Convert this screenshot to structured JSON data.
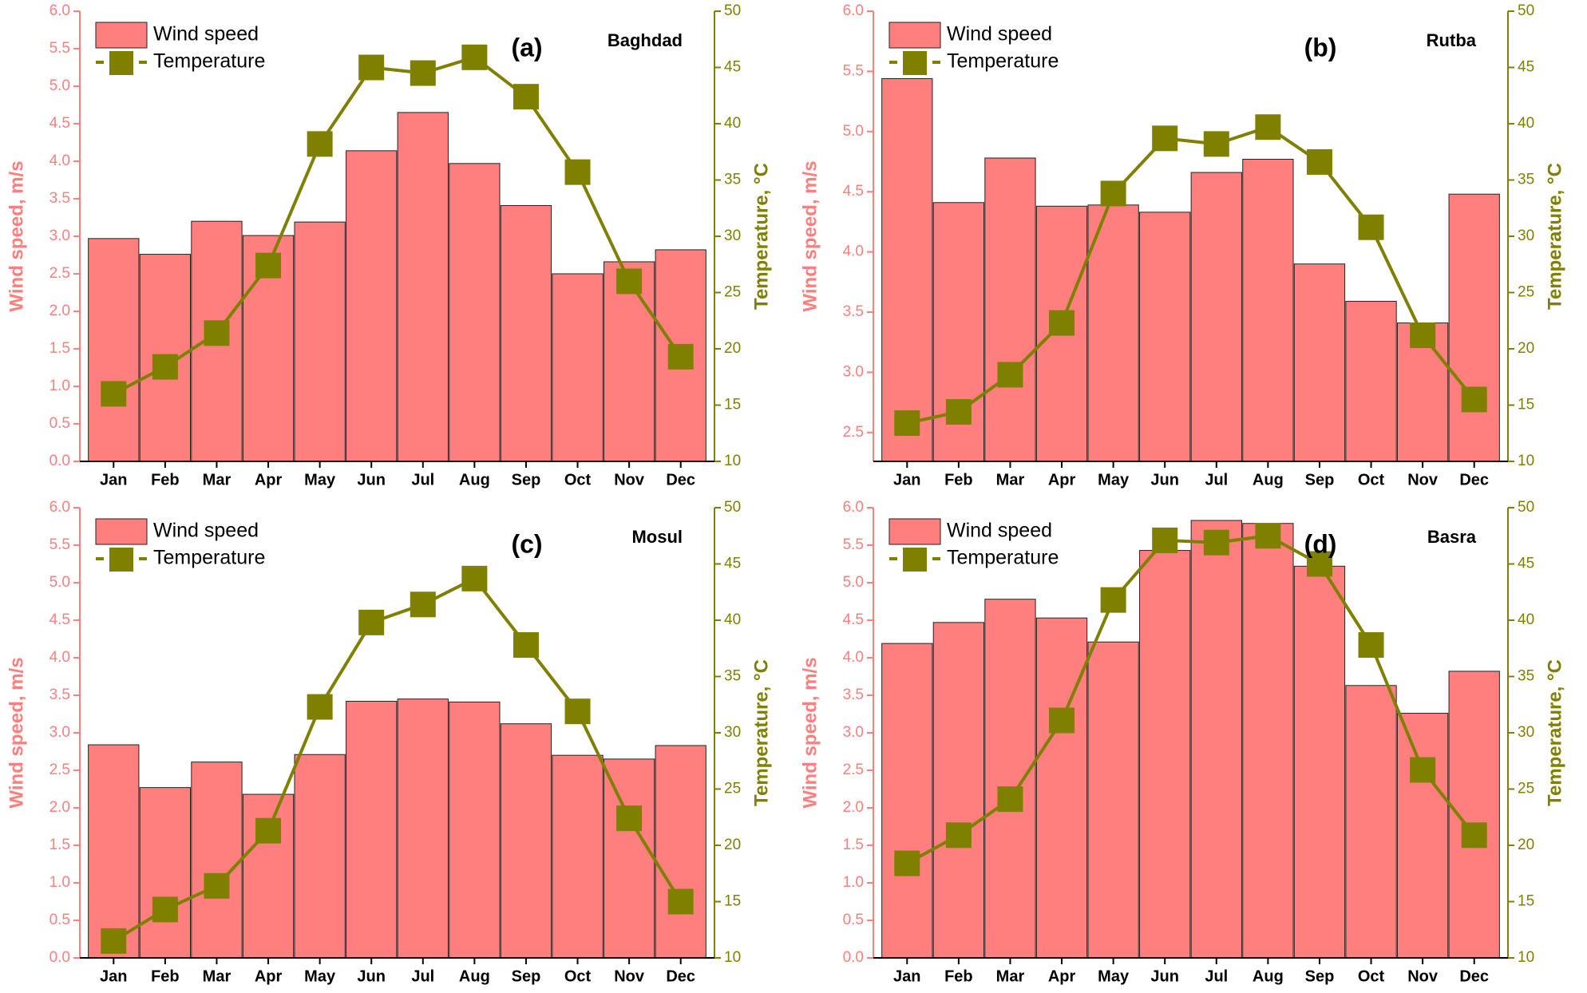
{
  "chart_data": [
    {
      "type": "bar",
      "panel": "(a)",
      "title": "Baghdad",
      "ylabel": "Wind speed, m/s",
      "y2label": "Temperature, °C",
      "legend": "upper left",
      "categories": [
        "Jan",
        "Feb",
        "Mar",
        "Apr",
        "May",
        "Jun",
        "Jul",
        "Aug",
        "Sep",
        "Oct",
        "Nov",
        "Dec"
      ],
      "series": [
        {
          "name": "Wind speed",
          "color": "#ff7f7f",
          "values": [
            2.97,
            2.76,
            3.2,
            3.01,
            3.19,
            4.14,
            4.65,
            3.97,
            3.41,
            2.5,
            2.66,
            2.82
          ]
        },
        {
          "name": "Temperature",
          "color": "#808000",
          "axis": "y2",
          "values": [
            16.0,
            18.4,
            21.4,
            27.4,
            38.2,
            45.0,
            44.5,
            45.9,
            42.4,
            35.7,
            26.0,
            19.3
          ]
        }
      ],
      "ylim": [
        0,
        6
      ],
      "yticks": [
        {
          "value": 0,
          "label": "0.0"
        },
        {
          "value": 0.5,
          "label": "0.5"
        },
        {
          "value": 1,
          "label": "1.0"
        },
        {
          "value": 1.5,
          "label": "1.5"
        },
        {
          "value": 2,
          "label": "2.0"
        },
        {
          "value": 2.5,
          "label": "2.5"
        },
        {
          "value": 3,
          "label": "3.0"
        },
        {
          "value": 3.5,
          "label": "3.5"
        },
        {
          "value": 4,
          "label": "4.0"
        },
        {
          "value": 4.5,
          "label": "4.5"
        },
        {
          "value": 5,
          "label": "5.0"
        },
        {
          "value": 5.5,
          "label": "5.5"
        },
        {
          "value": 6,
          "label": "6.0"
        }
      ],
      "y2lim": [
        10,
        50
      ],
      "y2ticks": [
        10,
        15,
        20,
        25,
        30,
        35,
        40,
        45,
        50
      ]
    },
    {
      "type": "bar",
      "panel": "(b)",
      "title": "Rutba",
      "ylabel": "Wind speed, m/s",
      "y2label": "Temperature, °C",
      "legend": "upper left",
      "categories": [
        "Jan",
        "Feb",
        "Mar",
        "Apr",
        "May",
        "Jun",
        "Jul",
        "Aug",
        "Sep",
        "Oct",
        "Nov",
        "Dec"
      ],
      "series": [
        {
          "name": "Wind speed",
          "color": "#ff7f7f",
          "values": [
            5.44,
            4.41,
            4.78,
            4.38,
            4.39,
            4.33,
            4.66,
            4.77,
            3.9,
            3.59,
            3.41,
            4.48
          ]
        },
        {
          "name": "Temperature",
          "color": "#808000",
          "axis": "y2",
          "values": [
            13.4,
            14.4,
            17.7,
            22.3,
            33.8,
            38.7,
            38.2,
            39.7,
            36.6,
            30.8,
            21.2,
            15.5
          ]
        }
      ],
      "ylim": [
        2.26,
        6
      ],
      "yticks": [
        {
          "value": 2.5,
          "label": "2.5"
        },
        {
          "value": 3,
          "label": "3.0"
        },
        {
          "value": 3.5,
          "label": "3.5"
        },
        {
          "value": 4,
          "label": "4.0"
        },
        {
          "value": 4.5,
          "label": "4.5"
        },
        {
          "value": 5,
          "label": "5.0"
        },
        {
          "value": 5.5,
          "label": "5.5"
        },
        {
          "value": 6,
          "label": "6.0"
        }
      ],
      "y2lim": [
        10,
        50
      ],
      "y2ticks": [
        10,
        15,
        20,
        25,
        30,
        35,
        40,
        45,
        50
      ]
    },
    {
      "type": "bar",
      "panel": "(c)",
      "title": "Mosul",
      "ylabel": "Wind speed, m/s",
      "y2label": "Temperature, °C",
      "legend": "upper left",
      "categories": [
        "Jan",
        "Feb",
        "Mar",
        "Apr",
        "May",
        "Jun",
        "Jul",
        "Aug",
        "Sep",
        "Oct",
        "Nov",
        "Dec"
      ],
      "series": [
        {
          "name": "Wind speed",
          "color": "#ff7f7f",
          "values": [
            2.84,
            2.27,
            2.61,
            2.18,
            2.71,
            3.42,
            3.45,
            3.41,
            3.12,
            2.7,
            2.65,
            2.83
          ]
        },
        {
          "name": "Temperature",
          "color": "#808000",
          "axis": "y2",
          "values": [
            11.5,
            14.3,
            16.4,
            21.3,
            32.3,
            39.8,
            41.4,
            43.7,
            37.8,
            31.9,
            22.4,
            15.0
          ]
        }
      ],
      "ylim": [
        0,
        6
      ],
      "yticks": [
        {
          "value": 0,
          "label": "0.0"
        },
        {
          "value": 0.5,
          "label": "0.5"
        },
        {
          "value": 1,
          "label": "1.0"
        },
        {
          "value": 1.5,
          "label": "1.5"
        },
        {
          "value": 2,
          "label": "2.0"
        },
        {
          "value": 2.5,
          "label": "2.5"
        },
        {
          "value": 3,
          "label": "3.0"
        },
        {
          "value": 3.5,
          "label": "3.5"
        },
        {
          "value": 4,
          "label": "4.0"
        },
        {
          "value": 4.5,
          "label": "4.5"
        },
        {
          "value": 5,
          "label": "5.0"
        },
        {
          "value": 5.5,
          "label": "5.5"
        },
        {
          "value": 6,
          "label": "6.0"
        }
      ],
      "y2lim": [
        10,
        50
      ],
      "y2ticks": [
        10,
        15,
        20,
        25,
        30,
        35,
        40,
        45,
        50
      ]
    },
    {
      "type": "bar",
      "panel": "(d)",
      "title": "Basra",
      "ylabel": "Wind speed, m/s",
      "y2label": "Temperature, °C",
      "legend": "upper left",
      "categories": [
        "Jan",
        "Feb",
        "Mar",
        "Apr",
        "May",
        "Jun",
        "Jul",
        "Aug",
        "Sep",
        "Oct",
        "Nov",
        "Dec"
      ],
      "series": [
        {
          "name": "Wind speed",
          "color": "#ff7f7f",
          "values": [
            4.19,
            4.47,
            4.78,
            4.53,
            4.21,
            5.43,
            5.83,
            5.79,
            5.22,
            3.63,
            3.26,
            3.82
          ]
        },
        {
          "name": "Temperature",
          "color": "#808000",
          "axis": "y2",
          "values": [
            18.4,
            20.9,
            24.1,
            31.1,
            41.8,
            47.1,
            46.9,
            47.5,
            45.0,
            37.8,
            26.7,
            20.9
          ]
        }
      ],
      "ylim": [
        0,
        6
      ],
      "yticks": [
        {
          "value": 0,
          "label": "0.0"
        },
        {
          "value": 0.5,
          "label": "0.5"
        },
        {
          "value": 1,
          "label": "1.0"
        },
        {
          "value": 1.5,
          "label": "1.5"
        },
        {
          "value": 2,
          "label": "2.0"
        },
        {
          "value": 2.5,
          "label": "2.5"
        },
        {
          "value": 3,
          "label": "3.0"
        },
        {
          "value": 3.5,
          "label": "3.5"
        },
        {
          "value": 4,
          "label": "4.0"
        },
        {
          "value": 4.5,
          "label": "4.5"
        },
        {
          "value": 5,
          "label": "5.0"
        },
        {
          "value": 5.5,
          "label": "5.5"
        },
        {
          "value": 6,
          "label": "6.0"
        }
      ],
      "y2lim": [
        10,
        50
      ],
      "y2ticks": [
        10,
        15,
        20,
        25,
        30,
        35,
        40,
        45,
        50
      ]
    }
  ]
}
